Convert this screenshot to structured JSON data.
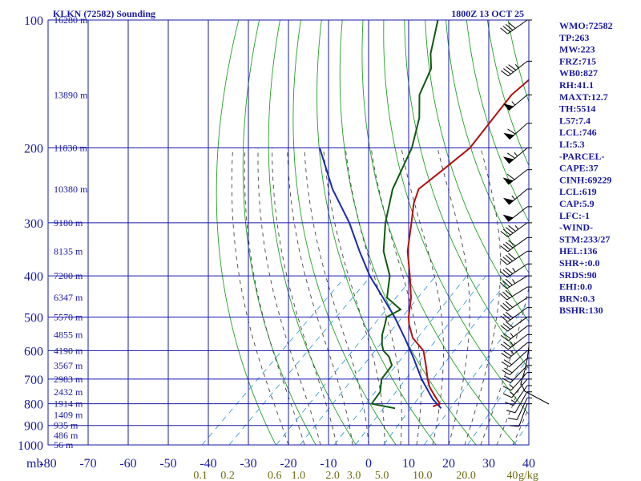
{
  "chart_data": {
    "type": "line",
    "subtype": "skew-t log-p sounding",
    "title_left": "KLKN (72582) Sounding",
    "title_right": "1800Z 13 OCT 25",
    "pressure_ticks": [
      "100",
      "200",
      "300",
      "400",
      "500",
      "600",
      "700",
      "800",
      "900",
      "1000"
    ],
    "pressure_tick_values": [
      100,
      200,
      300,
      400,
      500,
      600,
      700,
      800,
      900,
      1000
    ],
    "pressure_axis_unit": "mb",
    "temperature_ticks": [
      "-80",
      "-70",
      "-60",
      "-50",
      "-40",
      "-30",
      "-20",
      "-10",
      "0",
      "10",
      "20",
      "30",
      "40"
    ],
    "temperature_tick_values": [
      -80,
      -70,
      -60,
      -50,
      -40,
      -30,
      -20,
      -10,
      0,
      10,
      20,
      30,
      40
    ],
    "height_labels": [
      {
        "p": 100,
        "text": "16280 m"
      },
      {
        "p": 150,
        "text": "13890 m"
      },
      {
        "p": 200,
        "text": "11830 m"
      },
      {
        "p": 250,
        "text": "10380 m"
      },
      {
        "p": 300,
        "text": "9180 m"
      },
      {
        "p": 350,
        "text": "8135 m"
      },
      {
        "p": 400,
        "text": "7200 m"
      },
      {
        "p": 450,
        "text": "6347 m"
      },
      {
        "p": 500,
        "text": "5570 m"
      },
      {
        "p": 550,
        "text": "4855 m"
      },
      {
        "p": 600,
        "text": "4190 m"
      },
      {
        "p": 650,
        "text": "3567 m"
      },
      {
        "p": 700,
        "text": "2983 m"
      },
      {
        "p": 750,
        "text": "2432 m"
      },
      {
        "p": 800,
        "text": "1914 m"
      },
      {
        "p": 850,
        "text": "1409 m"
      },
      {
        "p": 900,
        "text": "935 m"
      },
      {
        "p": 950,
        "text": "486 m"
      },
      {
        "p": 1000,
        "text": "56 m"
      }
    ],
    "mixing_ratio_labels": [
      "0.1",
      "0.2",
      "0.6",
      "1.0",
      "2.0",
      "3.0",
      "5.0",
      "10.0",
      "20.0",
      "40",
      "g/kg"
    ],
    "mixing_ratio_values": [
      0.1,
      0.2,
      0.6,
      1.0,
      2.0,
      3.0,
      5.0,
      10.0,
      20.0,
      40.0
    ],
    "temperature_profile": [
      {
        "p": 812,
        "t": 6.0
      },
      {
        "p": 800,
        "t": 7.0
      },
      {
        "p": 770,
        "t": 4.0
      },
      {
        "p": 730,
        "t": 0.0
      },
      {
        "p": 700,
        "t": -2.5
      },
      {
        "p": 650,
        "t": -6.5
      },
      {
        "p": 600,
        "t": -11.0
      },
      {
        "p": 560,
        "t": -17.0
      },
      {
        "p": 520,
        "t": -21.5
      },
      {
        "p": 500,
        "t": -23.5
      },
      {
        "p": 450,
        "t": -28.0
      },
      {
        "p": 400,
        "t": -34.0
      },
      {
        "p": 350,
        "t": -41.0
      },
      {
        "p": 300,
        "t": -47.5
      },
      {
        "p": 270,
        "t": -52.0
      },
      {
        "p": 250,
        "t": -54.5
      },
      {
        "p": 225,
        "t": -53.5
      },
      {
        "p": 200,
        "t": -52.5
      },
      {
        "p": 170,
        "t": -54.5
      },
      {
        "p": 150,
        "t": -56.0
      },
      {
        "p": 135,
        "t": -55.5
      },
      {
        "p": 120,
        "t": -56.5
      },
      {
        "p": 110,
        "t": -58.0
      },
      {
        "p": 100,
        "t": -59.5
      }
    ],
    "dewpoint_profile": [
      {
        "p": 820,
        "t": -3.0
      },
      {
        "p": 800,
        "t": -10.0
      },
      {
        "p": 750,
        "t": -11.0
      },
      {
        "p": 700,
        "t": -14.0
      },
      {
        "p": 650,
        "t": -15.0
      },
      {
        "p": 620,
        "t": -18.0
      },
      {
        "p": 600,
        "t": -21.0
      },
      {
        "p": 580,
        "t": -23.0
      },
      {
        "p": 550,
        "t": -25.5
      },
      {
        "p": 520,
        "t": -27.5
      },
      {
        "p": 500,
        "t": -29.0
      },
      {
        "p": 480,
        "t": -27.5
      },
      {
        "p": 450,
        "t": -34.0
      },
      {
        "p": 400,
        "t": -39.0
      },
      {
        "p": 350,
        "t": -47.0
      },
      {
        "p": 300,
        "t": -54.0
      },
      {
        "p": 250,
        "t": -61.0
      },
      {
        "p": 200,
        "t": -67.0
      },
      {
        "p": 170,
        "t": -73.0
      },
      {
        "p": 150,
        "t": -79.0
      },
      {
        "p": 130,
        "t": -83.0
      },
      {
        "p": 120,
        "t": -87.0
      },
      {
        "p": 100,
        "t": -94.0
      }
    ],
    "parcel_path": [
      {
        "p": 820,
        "t": 8.5
      },
      {
        "p": 780,
        "t": 4.0
      },
      {
        "p": 700,
        "t": -4.0
      },
      {
        "p": 620,
        "t": -12.0
      },
      {
        "p": 560,
        "t": -19.0
      },
      {
        "p": 500,
        "t": -27.0
      },
      {
        "p": 450,
        "t": -35.0
      },
      {
        "p": 400,
        "t": -44.0
      },
      {
        "p": 350,
        "t": -53.0
      },
      {
        "p": 300,
        "t": -63.0
      },
      {
        "p": 250,
        "t": -76.0
      },
      {
        "p": 200,
        "t": -90.0
      }
    ],
    "hodograph": [
      {
        "x": 685,
        "y": 504
      },
      {
        "x": 655,
        "y": 488
      },
      {
        "x": 650,
        "y": 478
      },
      {
        "x": 655,
        "y": 462
      },
      {
        "x": 658,
        "y": 448
      },
      {
        "x": 660,
        "y": 432
      }
    ],
    "wind_barbs": [
      {
        "p": 100,
        "dir": 235,
        "spd": 40
      },
      {
        "p": 125,
        "dir": 232,
        "spd": 45
      },
      {
        "p": 150,
        "dir": 230,
        "spd": 55
      },
      {
        "p": 175,
        "dir": 228,
        "spd": 60
      },
      {
        "p": 200,
        "dir": 230,
        "spd": 65
      },
      {
        "p": 225,
        "dir": 232,
        "spd": 60
      },
      {
        "p": 250,
        "dir": 230,
        "spd": 55
      },
      {
        "p": 275,
        "dir": 232,
        "spd": 50
      },
      {
        "p": 300,
        "dir": 234,
        "spd": 45
      },
      {
        "p": 325,
        "dir": 234,
        "spd": 40
      },
      {
        "p": 350,
        "dir": 236,
        "spd": 40
      },
      {
        "p": 375,
        "dir": 236,
        "spd": 35
      },
      {
        "p": 400,
        "dir": 238,
        "spd": 35
      },
      {
        "p": 425,
        "dir": 238,
        "spd": 30
      },
      {
        "p": 450,
        "dir": 236,
        "spd": 30
      },
      {
        "p": 475,
        "dir": 234,
        "spd": 30
      },
      {
        "p": 500,
        "dir": 234,
        "spd": 30
      },
      {
        "p": 525,
        "dir": 232,
        "spd": 25
      },
      {
        "p": 550,
        "dir": 232,
        "spd": 25
      },
      {
        "p": 575,
        "dir": 230,
        "spd": 25
      },
      {
        "p": 600,
        "dir": 228,
        "spd": 20
      },
      {
        "p": 625,
        "dir": 226,
        "spd": 20
      },
      {
        "p": 650,
        "dir": 224,
        "spd": 20
      },
      {
        "p": 675,
        "dir": 222,
        "spd": 15
      },
      {
        "p": 700,
        "dir": 220,
        "spd": 15
      },
      {
        "p": 725,
        "dir": 215,
        "spd": 15
      },
      {
        "p": 750,
        "dir": 210,
        "spd": 10
      },
      {
        "p": 775,
        "dir": 205,
        "spd": 10
      },
      {
        "p": 800,
        "dir": 200,
        "spd": 10
      }
    ],
    "indices": [
      "WMO:72582",
      "TP:263",
      "MW:223",
      "FRZ:715",
      "WB0:827",
      "RH:41.1",
      "MAXT:12.7",
      "TH:5514",
      "L57:7.4",
      "LCL:746",
      "LI:5.3",
      "-PARCEL-",
      "CAPE:37",
      "CINH:69229",
      "LCL:619",
      "CAP:5.9",
      "LFC:-1",
      "-WIND-",
      "STM:233/27",
      "HEL:136",
      "SHR+:0.0",
      "SRDS:90",
      "EHI:0.0",
      "BRN:0.3",
      "BSHR:130"
    ],
    "colors": {
      "isobar": "#1818a8",
      "isotherm": "#1818a8",
      "dry_adiabat": "#22a022",
      "moist_adiabat": "#444444",
      "mixing_ratio": "#3d9fd6",
      "temperature": "#b01010",
      "dewpoint": "#0f5a0f",
      "parcel": "#1a2aaa",
      "text": "#1a1aa0",
      "mixing_label": "#6b6a10"
    },
    "pressure_range": [
      100,
      1000
    ],
    "temperature_range_at_surface": [
      -80,
      40
    ],
    "log_pressure_axis": true,
    "grid": true
  }
}
